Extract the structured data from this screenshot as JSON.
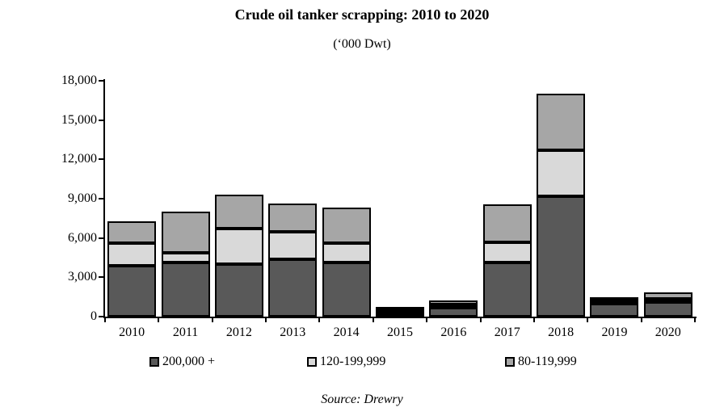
{
  "title": "Crude oil tanker scrapping: 2010 to 2020",
  "subtitle": "(‘000 Dwt)",
  "source": "Source: Drewry",
  "chart_data": {
    "type": "bar",
    "stacked": true,
    "title": "Crude oil tanker scrapping: 2010 to 2020",
    "subtitle": "(‘000 Dwt)",
    "unit": "'000 Dwt",
    "categories": [
      "2010",
      "2011",
      "2012",
      "2013",
      "2014",
      "2015",
      "2016",
      "2017",
      "2018",
      "2019",
      "2020"
    ],
    "series": [
      {
        "name": "200,000 +",
        "color": "#595959",
        "values": [
          3900,
          4100,
          4000,
          4400,
          4100,
          200,
          700,
          4100,
          9200,
          1200,
          1200
        ]
      },
      {
        "name": "120-199,999",
        "color": "#d9d9d9",
        "values": [
          1700,
          800,
          2700,
          2100,
          1500,
          150,
          250,
          1600,
          3500,
          200,
          100
        ]
      },
      {
        "name": "80-119,999",
        "color": "#a6a6a6",
        "values": [
          1700,
          3100,
          2600,
          2100,
          2700,
          150,
          300,
          2900,
          4300,
          100,
          550
        ]
      }
    ],
    "totals": [
      7300,
      8000,
      9300,
      8600,
      8300,
      500,
      1250,
      8600,
      17000,
      1500,
      1850
    ],
    "ylim": [
      0,
      18000
    ],
    "ytick_labels": [
      "0",
      "3,000",
      "6,000",
      "9,000",
      "12,000",
      "15,000",
      "18,000"
    ],
    "grid": false,
    "legend_position": "bottom",
    "source": "Source: Drewry"
  }
}
